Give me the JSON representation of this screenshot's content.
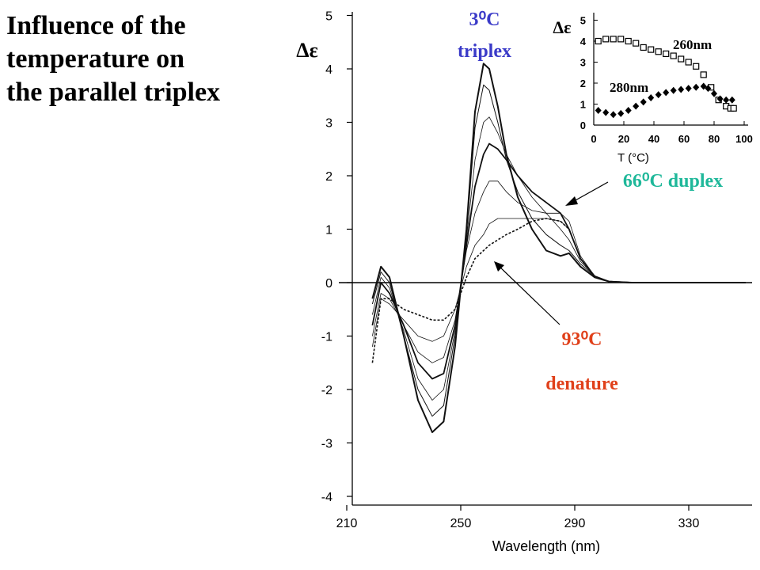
{
  "slide": {
    "title_lines": [
      "Influence of the",
      "temperature on",
      "the parallel triplex"
    ]
  },
  "colors": {
    "triplex": "#3a3ac8",
    "duplex": "#1fb89a",
    "denature": "#e0401a",
    "axis": "#000000"
  },
  "annotations": {
    "triplex_temp": "3⁰C",
    "triplex_label": "triplex",
    "duplex_label": "66⁰C duplex",
    "denature_temp": "93⁰C",
    "denature_label": "denature"
  },
  "chart_data": [
    {
      "type": "line",
      "ylabel": "Δε",
      "xlabel": "Wavelength (nm)",
      "xlim": [
        205,
        355
      ],
      "ylim": [
        -4,
        5
      ],
      "x_ticks": [
        210,
        250,
        290,
        330
      ],
      "y_ticks": [
        5,
        4,
        3,
        2,
        1,
        0,
        -1,
        -2,
        -3,
        -4
      ],
      "x": [
        219,
        222,
        225,
        230,
        235,
        240,
        244,
        248,
        252,
        255,
        258,
        260,
        263,
        266,
        270,
        275,
        280,
        285,
        288,
        292,
        297,
        302,
        310,
        330,
        350
      ],
      "series": [
        {
          "values": [
            -0.3,
            0.3,
            0.1,
            -1.0,
            -2.2,
            -2.8,
            -2.6,
            -1.2,
            1.0,
            3.2,
            4.1,
            4.0,
            3.3,
            2.4,
            1.6,
            1.0,
            0.6,
            0.5,
            0.55,
            0.3,
            0.1,
            0.02,
            0.0,
            0.0,
            0.0
          ]
        },
        {
          "values": [
            -0.4,
            0.2,
            0.0,
            -1.0,
            -2.0,
            -2.5,
            -2.3,
            -1.0,
            0.9,
            2.9,
            3.7,
            3.6,
            3.0,
            2.3,
            1.7,
            1.2,
            0.9,
            0.7,
            0.6,
            0.35,
            0.12,
            0.02,
            0.0,
            0.0,
            0.0
          ]
        },
        {
          "values": [
            -0.6,
            0.1,
            -0.1,
            -0.9,
            -1.8,
            -2.2,
            -2.0,
            -0.9,
            0.8,
            2.3,
            3.0,
            3.1,
            2.8,
            2.4,
            2.0,
            1.6,
            1.3,
            1.0,
            0.8,
            0.4,
            0.12,
            0.02,
            0.0,
            0.0,
            0.0
          ]
        },
        {
          "values": [
            -0.8,
            0.0,
            -0.2,
            -0.8,
            -1.5,
            -1.8,
            -1.7,
            -0.8,
            0.7,
            1.8,
            2.4,
            2.6,
            2.5,
            2.3,
            2.0,
            1.7,
            1.5,
            1.3,
            1.0,
            0.45,
            0.12,
            0.02,
            0.0,
            0.0,
            0.0
          ]
        },
        {
          "values": [
            -1.0,
            -0.2,
            -0.3,
            -0.8,
            -1.3,
            -1.5,
            -1.4,
            -0.7,
            0.6,
            1.3,
            1.7,
            1.9,
            1.9,
            1.7,
            1.5,
            1.35,
            1.3,
            1.3,
            1.15,
            0.5,
            0.12,
            0.02,
            0.0,
            0.0,
            0.0
          ]
        },
        {
          "values": [
            -1.2,
            -0.3,
            -0.4,
            -0.7,
            -1.0,
            -1.1,
            -1.0,
            -0.5,
            0.3,
            0.7,
            0.9,
            1.1,
            1.2,
            1.2,
            1.2,
            1.2,
            1.2,
            1.15,
            1.0,
            0.45,
            0.1,
            0.02,
            0.0,
            0.0,
            0.0
          ]
        },
        {
          "values": [
            -1.5,
            -0.3,
            -0.3,
            -0.5,
            -0.6,
            -0.7,
            -0.7,
            -0.5,
            0.1,
            0.45,
            0.6,
            0.7,
            0.8,
            0.9,
            1.0,
            1.15,
            1.2,
            1.15,
            1.0,
            0.45,
            0.1,
            0.02,
            0.0,
            0.0,
            0.0
          ]
        }
      ]
    },
    {
      "type": "scatter",
      "ylabel": "Δε",
      "xlabel": "T (°C)",
      "xlim": [
        0,
        100
      ],
      "ylim": [
        0,
        5
      ],
      "x_ticks": [
        0,
        20,
        40,
        60,
        80,
        100
      ],
      "y_ticks": [
        5,
        4,
        3,
        2,
        1,
        0
      ],
      "series": [
        {
          "name": "260nm",
          "marker": "open-square",
          "x": [
            3,
            8,
            13,
            18,
            23,
            28,
            33,
            38,
            43,
            48,
            53,
            58,
            63,
            68,
            73,
            78,
            83,
            88,
            91,
            93
          ],
          "y": [
            4.0,
            4.1,
            4.1,
            4.1,
            4.0,
            3.9,
            3.7,
            3.6,
            3.5,
            3.4,
            3.3,
            3.15,
            3.0,
            2.8,
            2.4,
            1.8,
            1.2,
            0.9,
            0.8,
            0.8
          ]
        },
        {
          "name": "280nm",
          "marker": "filled-diamond",
          "x": [
            3,
            8,
            13,
            18,
            23,
            28,
            33,
            38,
            43,
            48,
            53,
            58,
            63,
            68,
            73,
            76,
            80,
            84,
            88,
            92
          ],
          "y": [
            0.7,
            0.6,
            0.5,
            0.55,
            0.7,
            0.9,
            1.1,
            1.3,
            1.45,
            1.55,
            1.65,
            1.7,
            1.75,
            1.8,
            1.85,
            1.75,
            1.5,
            1.25,
            1.2,
            1.2
          ]
        }
      ]
    }
  ]
}
